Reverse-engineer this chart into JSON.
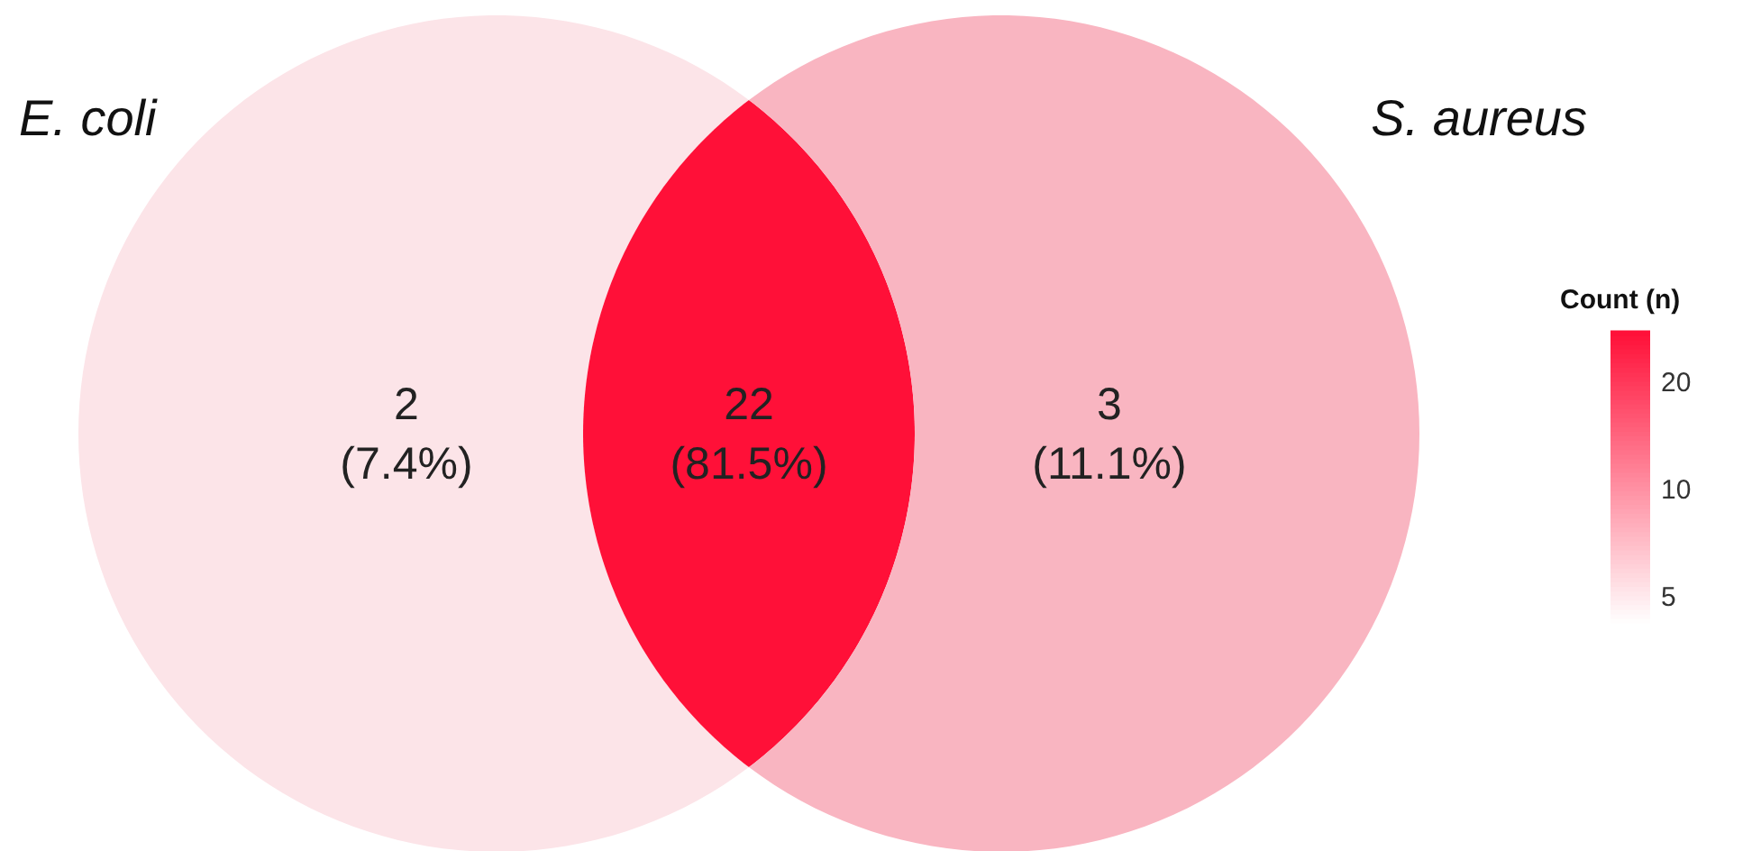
{
  "chart_data": {
    "type": "other",
    "categories": [
      "E. coli",
      null,
      "S. aureus"
    ],
    "values": [
      2,
      22,
      3
    ],
    "data_labels": true,
    "annotations": [
      "(7.4%)",
      "(81.5%)",
      "(11.1%)",
      "20",
      "10",
      "5"
    ],
    "colors": [
      "#fce4e8",
      "#ff1038",
      "#f9b5c1"
    ],
    "clabel": "Count (n)"
  }
}
